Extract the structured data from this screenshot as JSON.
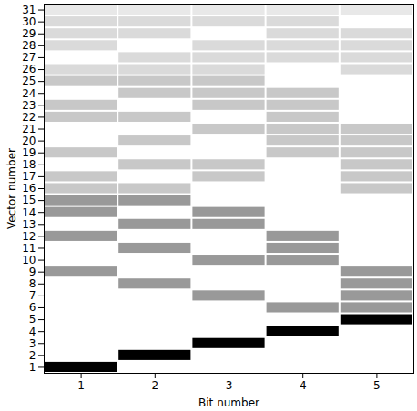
{
  "chart_data": {
    "type": "heatmap",
    "x_label": "Bit number",
    "y_label": "Vector number",
    "xlim": [
      0.5,
      5.5
    ],
    "ylim": [
      0.5,
      31.5
    ],
    "xticks": [
      1,
      2,
      3,
      4,
      5
    ],
    "yticks": [
      1,
      2,
      3,
      4,
      5,
      6,
      7,
      8,
      9,
      10,
      11,
      12,
      13,
      14,
      15,
      16,
      17,
      18,
      19,
      20,
      21,
      22,
      23,
      24,
      25,
      26,
      27,
      28,
      29,
      30,
      31
    ],
    "grid": false,
    "cells": [
      {
        "vector": 1,
        "bits": [
          1
        ],
        "color": "#000000"
      },
      {
        "vector": 2,
        "bits": [
          2
        ],
        "color": "#000000"
      },
      {
        "vector": 3,
        "bits": [
          3
        ],
        "color": "#000000"
      },
      {
        "vector": 4,
        "bits": [
          4
        ],
        "color": "#000000"
      },
      {
        "vector": 5,
        "bits": [
          5
        ],
        "color": "#000000"
      },
      {
        "vector": 6,
        "bits": [
          4,
          5
        ],
        "color": "#999999"
      },
      {
        "vector": 7,
        "bits": [
          3,
          5
        ],
        "color": "#999999"
      },
      {
        "vector": 8,
        "bits": [
          2,
          5
        ],
        "color": "#999999"
      },
      {
        "vector": 9,
        "bits": [
          1,
          5
        ],
        "color": "#999999"
      },
      {
        "vector": 10,
        "bits": [
          3,
          4
        ],
        "color": "#999999"
      },
      {
        "vector": 11,
        "bits": [
          2,
          4
        ],
        "color": "#999999"
      },
      {
        "vector": 12,
        "bits": [
          1,
          4
        ],
        "color": "#999999"
      },
      {
        "vector": 13,
        "bits": [
          2,
          3
        ],
        "color": "#999999"
      },
      {
        "vector": 14,
        "bits": [
          1,
          3
        ],
        "color": "#999999"
      },
      {
        "vector": 15,
        "bits": [
          1,
          2
        ],
        "color": "#999999"
      },
      {
        "vector": 16,
        "bits": [
          1,
          2,
          5
        ],
        "color": "#c8c8c8"
      },
      {
        "vector": 17,
        "bits": [
          1,
          3,
          5
        ],
        "color": "#c8c8c8"
      },
      {
        "vector": 18,
        "bits": [
          2,
          3,
          5
        ],
        "color": "#c8c8c8"
      },
      {
        "vector": 19,
        "bits": [
          1,
          4,
          5
        ],
        "color": "#c8c8c8"
      },
      {
        "vector": 20,
        "bits": [
          2,
          4,
          5
        ],
        "color": "#c8c8c8"
      },
      {
        "vector": 21,
        "bits": [
          3,
          4,
          5
        ],
        "color": "#c8c8c8"
      },
      {
        "vector": 22,
        "bits": [
          1,
          2,
          4
        ],
        "color": "#c8c8c8"
      },
      {
        "vector": 23,
        "bits": [
          1,
          3,
          4
        ],
        "color": "#c8c8c8"
      },
      {
        "vector": 24,
        "bits": [
          2,
          3,
          4
        ],
        "color": "#c8c8c8"
      },
      {
        "vector": 25,
        "bits": [
          1,
          2,
          3
        ],
        "color": "#c8c8c8"
      },
      {
        "vector": 26,
        "bits": [
          1,
          2,
          3,
          5
        ],
        "color": "#dadada"
      },
      {
        "vector": 27,
        "bits": [
          2,
          3,
          4,
          5
        ],
        "color": "#dadada"
      },
      {
        "vector": 28,
        "bits": [
          1,
          3,
          4,
          5
        ],
        "color": "#dadada"
      },
      {
        "vector": 29,
        "bits": [
          1,
          2,
          4,
          5
        ],
        "color": "#dadada"
      },
      {
        "vector": 30,
        "bits": [
          1,
          2,
          3,
          4
        ],
        "color": "#dadada"
      },
      {
        "vector": 31,
        "bits": [
          1,
          2,
          3,
          4,
          5
        ],
        "color": "#e8e8e8"
      }
    ]
  }
}
